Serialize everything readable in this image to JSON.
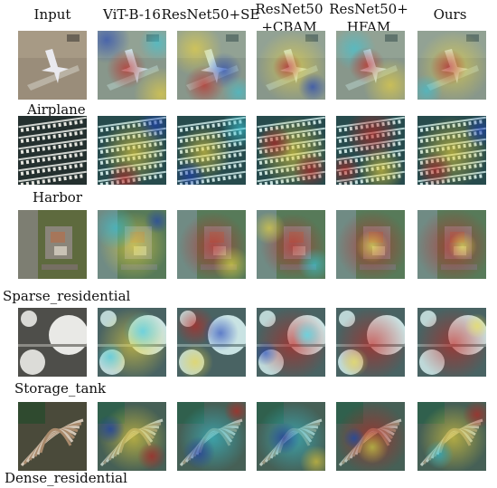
{
  "columns": [
    {
      "id": "input",
      "label": "Input"
    },
    {
      "id": "vit",
      "label": "ViT-B-16"
    },
    {
      "id": "se",
      "label": "ResNet50+SE"
    },
    {
      "id": "cbam",
      "label": "ResNet50 +CBAM"
    },
    {
      "id": "hfam",
      "label": "ResNet50+ HFAM"
    },
    {
      "id": "ours",
      "label": "Ours"
    }
  ],
  "rows": [
    {
      "label": "Airplane",
      "scene": "airplane"
    },
    {
      "label": "Harbor",
      "scene": "harbor"
    },
    {
      "label": "Sparse_residential",
      "scene": "sparse"
    },
    {
      "label": "Storage_tank",
      "scene": "tank"
    },
    {
      "label": "Dense_residential",
      "scene": "dense"
    }
  ],
  "header_lines": {
    "input": [
      "Input"
    ],
    "vit": [
      "ViT-B-16"
    ],
    "se": [
      "ResNet50+SE"
    ],
    "cbam": [
      "ResNet50",
      "+CBAM"
    ],
    "hfam": [
      "ResNet50+",
      "HFAM"
    ],
    "ours": [
      "Ours"
    ]
  },
  "colors": {
    "heat_red": "#c8201c",
    "heat_yellow": "#f1d63a",
    "heat_cyan": "#38c7d9",
    "heat_blue": "#1d3fb8"
  }
}
